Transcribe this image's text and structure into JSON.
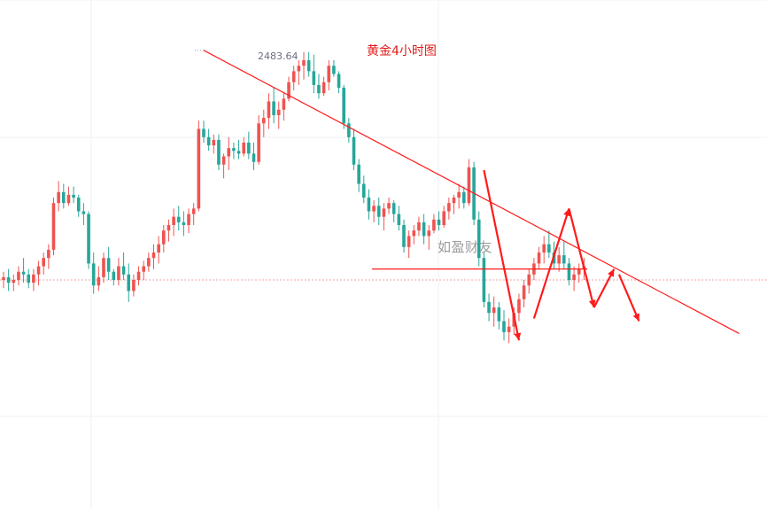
{
  "chart_data": {
    "type": "candlestick",
    "title": "黄金4小时图",
    "watermark": "如盈财友",
    "peak_label": "2483.64",
    "colors": {
      "up": "#ef5350",
      "down": "#26a69a",
      "annotation": "#ff1a1a",
      "grid": "#eef0f3"
    },
    "grid": true,
    "ylim": [
      2360,
      2490
    ],
    "candles": [
      [
        2400,
        2403,
        2397,
        2401
      ],
      [
        2401,
        2404,
        2396,
        2399
      ],
      [
        2399,
        2402,
        2396,
        2400
      ],
      [
        2400,
        2405,
        2398,
        2403
      ],
      [
        2403,
        2408,
        2399,
        2402
      ],
      [
        2402,
        2404,
        2397,
        2399
      ],
      [
        2399,
        2404,
        2396,
        2402
      ],
      [
        2402,
        2407,
        2398,
        2405
      ],
      [
        2405,
        2410,
        2402,
        2408
      ],
      [
        2408,
        2413,
        2404,
        2411
      ],
      [
        2411,
        2430,
        2409,
        2428
      ],
      [
        2428,
        2436,
        2425,
        2432
      ],
      [
        2432,
        2435,
        2426,
        2428
      ],
      [
        2428,
        2434,
        2427,
        2431
      ],
      [
        2431,
        2434,
        2428,
        2430
      ],
      [
        2430,
        2431,
        2423,
        2425
      ],
      [
        2425,
        2428,
        2420,
        2424
      ],
      [
        2424,
        2425,
        2404,
        2406
      ],
      [
        2406,
        2410,
        2395,
        2398
      ],
      [
        2398,
        2405,
        2396,
        2401
      ],
      [
        2401,
        2410,
        2399,
        2408
      ],
      [
        2408,
        2412,
        2400,
        2403
      ],
      [
        2403,
        2404,
        2398,
        2400
      ],
      [
        2400,
        2408,
        2398,
        2405
      ],
      [
        2405,
        2410,
        2400,
        2402
      ],
      [
        2402,
        2406,
        2392,
        2396
      ],
      [
        2396,
        2402,
        2394,
        2400
      ],
      [
        2400,
        2405,
        2398,
        2403
      ],
      [
        2403,
        2407,
        2400,
        2405
      ],
      [
        2405,
        2410,
        2403,
        2408
      ],
      [
        2408,
        2413,
        2404,
        2410
      ],
      [
        2410,
        2416,
        2406,
        2413
      ],
      [
        2413,
        2420,
        2410,
        2418
      ],
      [
        2418,
        2422,
        2414,
        2420
      ],
      [
        2420,
        2426,
        2416,
        2423
      ],
      [
        2423,
        2427,
        2418,
        2421
      ],
      [
        2421,
        2425,
        2416,
        2420
      ],
      [
        2420,
        2426,
        2417,
        2424
      ],
      [
        2424,
        2428,
        2420,
        2426
      ],
      [
        2426,
        2458,
        2425,
        2455
      ],
      [
        2455,
        2458,
        2450,
        2452
      ],
      [
        2452,
        2455,
        2447,
        2449
      ],
      [
        2449,
        2453,
        2446,
        2451
      ],
      [
        2451,
        2453,
        2440,
        2442
      ],
      [
        2442,
        2446,
        2437,
        2445
      ],
      [
        2445,
        2452,
        2440,
        2448
      ],
      [
        2448,
        2450,
        2444,
        2447
      ],
      [
        2447,
        2451,
        2444,
        2446
      ],
      [
        2446,
        2452,
        2445,
        2450
      ],
      [
        2450,
        2454,
        2444,
        2446
      ],
      [
        2446,
        2450,
        2440,
        2443
      ],
      [
        2443,
        2460,
        2442,
        2457
      ],
      [
        2457,
        2462,
        2452,
        2459
      ],
      [
        2459,
        2468,
        2455,
        2465
      ],
      [
        2465,
        2470,
        2457,
        2460
      ],
      [
        2460,
        2465,
        2455,
        2462
      ],
      [
        2462,
        2468,
        2458,
        2466
      ],
      [
        2466,
        2474,
        2465,
        2472
      ],
      [
        2472,
        2478,
        2469,
        2476
      ],
      [
        2476,
        2480,
        2471,
        2478
      ],
      [
        2478,
        2483,
        2473,
        2480
      ],
      [
        2480,
        2483,
        2474,
        2476
      ],
      [
        2476,
        2482,
        2468,
        2471
      ],
      [
        2471,
        2475,
        2466,
        2468
      ],
      [
        2468,
        2474,
        2467,
        2472
      ],
      [
        2472,
        2480,
        2469,
        2478
      ],
      [
        2478,
        2480,
        2474,
        2475
      ],
      [
        2475,
        2476,
        2468,
        2470
      ],
      [
        2470,
        2471,
        2455,
        2457
      ],
      [
        2457,
        2459,
        2450,
        2452
      ],
      [
        2452,
        2455,
        2440,
        2442
      ],
      [
        2442,
        2444,
        2432,
        2435
      ],
      [
        2435,
        2438,
        2428,
        2430
      ],
      [
        2430,
        2433,
        2422,
        2425
      ],
      [
        2425,
        2429,
        2421,
        2427
      ],
      [
        2427,
        2430,
        2420,
        2423
      ],
      [
        2423,
        2428,
        2418,
        2426
      ],
      [
        2426,
        2430,
        2424,
        2428
      ],
      [
        2428,
        2429,
        2421,
        2424
      ],
      [
        2424,
        2427,
        2418,
        2420
      ],
      [
        2420,
        2422,
        2410,
        2412
      ],
      [
        2412,
        2418,
        2408,
        2416
      ],
      [
        2416,
        2420,
        2413,
        2418
      ],
      [
        2418,
        2423,
        2416,
        2421
      ],
      [
        2421,
        2424,
        2413,
        2416
      ],
      [
        2416,
        2420,
        2411,
        2418
      ],
      [
        2418,
        2424,
        2417,
        2422
      ],
      [
        2422,
        2425,
        2418,
        2420
      ],
      [
        2420,
        2427,
        2419,
        2425
      ],
      [
        2425,
        2430,
        2422,
        2428
      ],
      [
        2428,
        2431,
        2424,
        2430
      ],
      [
        2430,
        2435,
        2426,
        2432
      ],
      [
        2432,
        2434,
        2426,
        2428
      ],
      [
        2428,
        2444,
        2427,
        2441
      ],
      [
        2441,
        2443,
        2420,
        2422
      ],
      [
        2422,
        2425,
        2405,
        2408
      ],
      [
        2408,
        2410,
        2390,
        2392
      ],
      [
        2392,
        2395,
        2385,
        2388
      ],
      [
        2388,
        2394,
        2383,
        2390
      ],
      [
        2390,
        2392,
        2382,
        2385
      ],
      [
        2385,
        2389,
        2378,
        2381
      ],
      [
        2381,
        2386,
        2377,
        2383
      ],
      [
        2383,
        2390,
        2380,
        2388
      ],
      [
        2388,
        2395,
        2385,
        2393
      ],
      [
        2393,
        2400,
        2390,
        2398
      ],
      [
        2398,
        2404,
        2395,
        2402
      ],
      [
        2402,
        2408,
        2400,
        2406
      ],
      [
        2406,
        2412,
        2404,
        2410
      ],
      [
        2410,
        2416,
        2406,
        2413
      ],
      [
        2413,
        2418,
        2408,
        2410
      ],
      [
        2410,
        2414,
        2404,
        2406
      ],
      [
        2406,
        2412,
        2403,
        2409
      ],
      [
        2409,
        2414,
        2404,
        2406
      ],
      [
        2406,
        2408,
        2398,
        2400
      ],
      [
        2400,
        2405,
        2396,
        2402
      ],
      [
        2402,
        2406,
        2399,
        2404
      ],
      [
        2404,
        2408,
        2400,
        2405
      ]
    ],
    "annotations": {
      "trendline": [
        [
          40,
          2483.6
        ],
        [
          147,
          2380.5
        ]
      ],
      "resistance": {
        "price": 2404,
        "from": 74,
        "to": 117
      },
      "current_price": 2400,
      "arrows": [
        [
          [
            96,
            2440
          ],
          [
            103,
            2378
          ]
        ],
        [
          [
            106,
            2386
          ],
          [
            113,
            2426
          ]
        ],
        [
          [
            113,
            2426
          ],
          [
            118,
            2390
          ]
        ],
        [
          [
            118,
            2390
          ],
          [
            122,
            2404
          ]
        ],
        [
          [
            123,
            2402
          ],
          [
            127,
            2385
          ]
        ]
      ]
    }
  }
}
